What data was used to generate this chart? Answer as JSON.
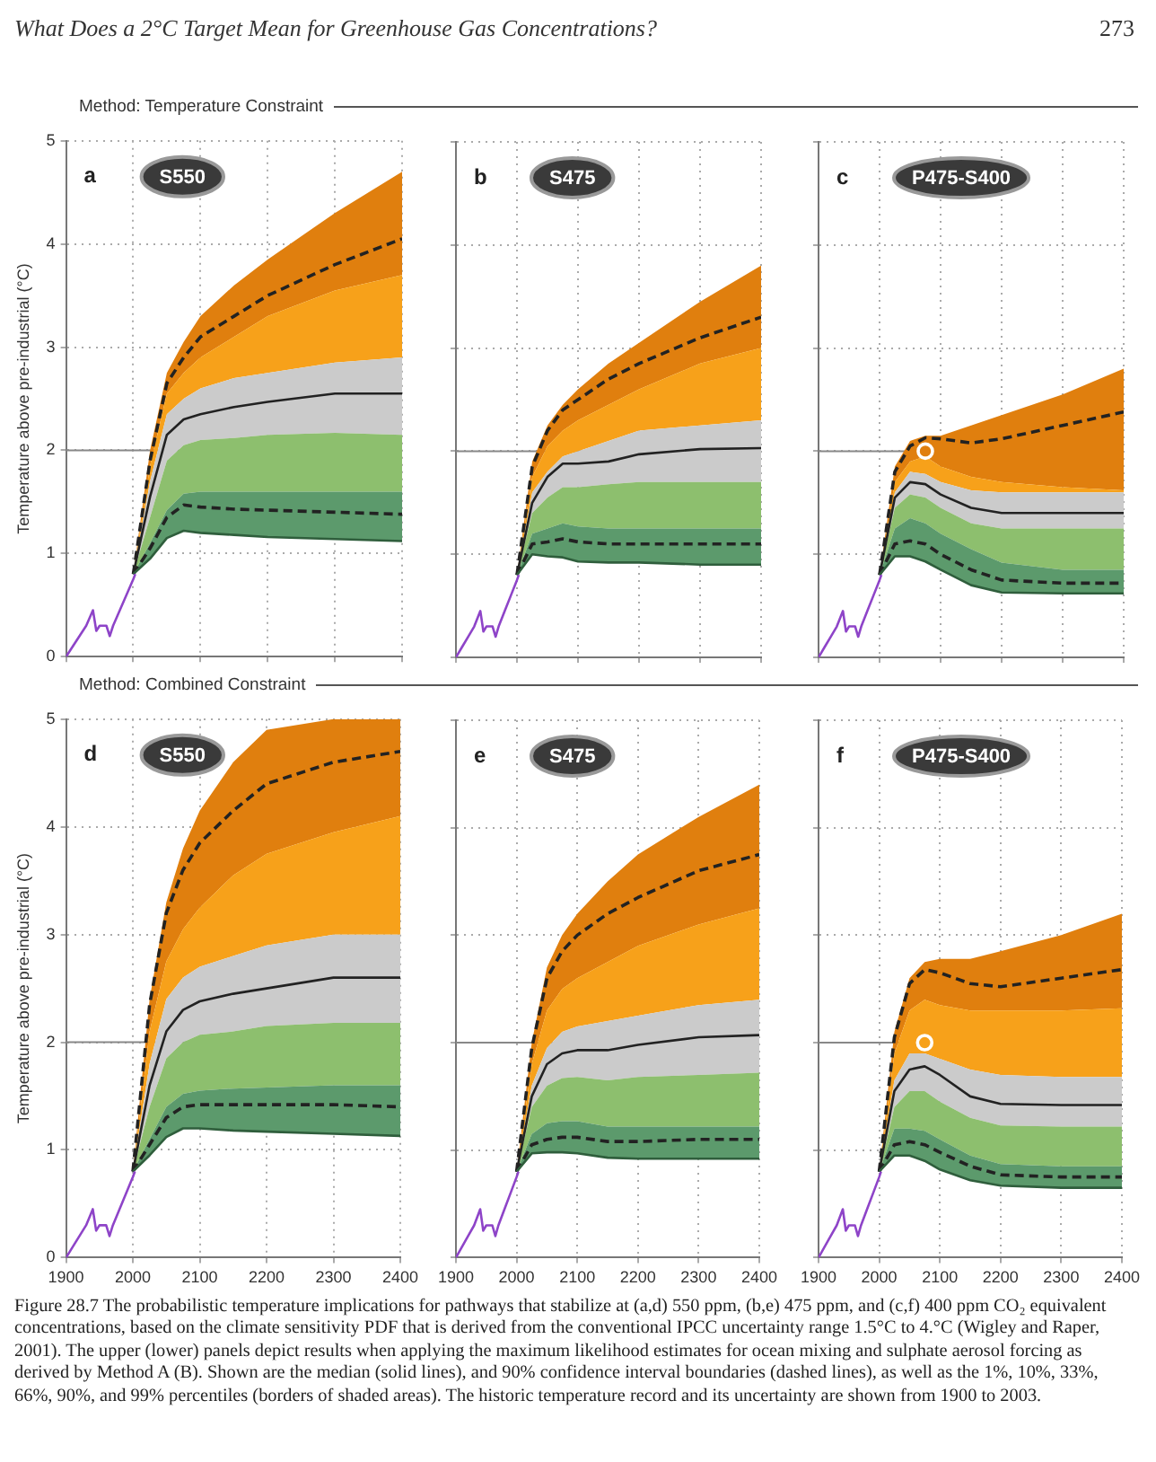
{
  "chart_data": [
    {
      "type": "line",
      "title": "a",
      "subtitle": "S550",
      "ylabel": "Temperature above pre-industrial (°C)",
      "annotations": [
        "What Does a 2°C Target Mean for Greenhouse Gas Concentrations?",
        "273",
        "Method: Temperature Constraint"
      ],
      "x": [
        2000,
        2025,
        2050,
        2075,
        2100,
        2150,
        2200,
        2300,
        2400
      ],
      "xlim": [
        1900,
        2400
      ],
      "xticks": [
        1900,
        2000,
        2100,
        2200,
        2300,
        2400
      ],
      "ylim": [
        0,
        5
      ],
      "yticks": [
        0,
        1,
        2,
        3,
        4,
        5
      ],
      "grid": true,
      "legend": false,
      "marker": "none",
      "tick_labels": "y",
      "ref_lines": [
        {
          "axis": "y",
          "value": 2,
          "color": "#888888"
        }
      ],
      "series": [
        {
          "type": "line",
          "color": "#8e44c8",
          "x": [
            1900,
            1910,
            1920,
            1930,
            1940,
            1945,
            1950,
            1960,
            1965,
            1970,
            1980,
            1990,
            2000,
            2003
          ],
          "values": [
            0,
            0.1,
            0.2,
            0.3,
            0.45,
            0.25,
            0.3,
            0.3,
            0.2,
            0.3,
            0.45,
            0.6,
            0.75,
            0.8
          ]
        },
        {
          "type": "line",
          "color": "#2f5e3c",
          "values": [
            0.8,
            0.95,
            1.15,
            1.22,
            1.2,
            1.18,
            1.16,
            1.14,
            1.12
          ]
        },
        {
          "type": "area",
          "color": "#5c9a6c",
          "values": [
            0.8,
            1.1,
            1.42,
            1.58,
            1.6,
            1.6,
            1.6,
            1.6,
            1.6
          ]
        },
        {
          "type": "area",
          "color": "#8dbf6e",
          "values": [
            0.8,
            1.35,
            1.9,
            2.05,
            2.1,
            2.12,
            2.15,
            2.17,
            2.15
          ]
        },
        {
          "type": "area",
          "color": "#cbcbcb",
          "values": [
            0.8,
            1.7,
            2.35,
            2.5,
            2.6,
            2.7,
            2.75,
            2.85,
            2.9
          ]
        },
        {
          "type": "area",
          "color": "#f7a11a",
          "values": [
            0.8,
            1.85,
            2.55,
            2.75,
            2.9,
            3.1,
            3.3,
            3.55,
            3.7
          ]
        },
        {
          "type": "area",
          "color": "#e07f0e",
          "values": [
            0.8,
            2.0,
            2.75,
            3.05,
            3.3,
            3.6,
            3.85,
            4.3,
            4.7
          ]
        },
        {
          "type": "line",
          "color": "#222222",
          "values": [
            0.8,
            1.55,
            2.15,
            2.3,
            2.35,
            2.42,
            2.47,
            2.55,
            2.55
          ]
        },
        {
          "type": "line",
          "color": "#222222",
          "line_style": "dashed",
          "values": [
            0.8,
            1.05,
            1.35,
            1.47,
            1.45,
            1.43,
            1.42,
            1.4,
            1.38
          ]
        },
        {
          "type": "line",
          "color": "#222222",
          "line_style": "dashed",
          "values": [
            0.8,
            1.9,
            2.65,
            2.9,
            3.1,
            3.3,
            3.5,
            3.8,
            4.05
          ]
        }
      ]
    },
    {
      "type": "line",
      "title": "b",
      "subtitle": "S475",
      "x": [
        2000,
        2025,
        2050,
        2075,
        2100,
        2150,
        2200,
        2300,
        2400
      ],
      "xlim": [
        1900,
        2400
      ],
      "xticks": [
        1900,
        2000,
        2100,
        2200,
        2300,
        2400
      ],
      "ylim": [
        0,
        5
      ],
      "yticks": [
        0,
        1,
        2,
        3,
        4,
        5
      ],
      "grid": true,
      "legend": false,
      "marker": "none",
      "tick_labels": false,
      "ref_lines": [
        {
          "axis": "y",
          "value": 2,
          "color": "#888888"
        }
      ],
      "series": [
        {
          "type": "line",
          "color": "#8e44c8",
          "x": [
            1900,
            1910,
            1920,
            1930,
            1940,
            1945,
            1950,
            1960,
            1965,
            1970,
            1980,
            1990,
            2000,
            2003
          ],
          "values": [
            0,
            0.1,
            0.2,
            0.3,
            0.45,
            0.25,
            0.3,
            0.3,
            0.2,
            0.3,
            0.45,
            0.6,
            0.75,
            0.8
          ]
        },
        {
          "type": "line",
          "color": "#2f5e3c",
          "values": [
            0.8,
            1.0,
            0.98,
            0.97,
            0.93,
            0.92,
            0.92,
            0.9,
            0.9
          ]
        },
        {
          "type": "area",
          "color": "#5c9a6c",
          "values": [
            0.8,
            1.2,
            1.25,
            1.3,
            1.27,
            1.25,
            1.25,
            1.25,
            1.25
          ]
        },
        {
          "type": "area",
          "color": "#8dbf6e",
          "values": [
            0.8,
            1.4,
            1.55,
            1.65,
            1.65,
            1.68,
            1.7,
            1.7,
            1.7
          ]
        },
        {
          "type": "area",
          "color": "#cbcbcb",
          "values": [
            0.8,
            1.6,
            1.8,
            1.95,
            2.0,
            2.1,
            2.2,
            2.25,
            2.3
          ]
        },
        {
          "type": "area",
          "color": "#f7a11a",
          "values": [
            0.8,
            1.75,
            2.05,
            2.2,
            2.3,
            2.45,
            2.6,
            2.85,
            3.0
          ]
        },
        {
          "type": "area",
          "color": "#e07f0e",
          "values": [
            0.8,
            1.9,
            2.25,
            2.45,
            2.6,
            2.85,
            3.05,
            3.45,
            3.8
          ]
        },
        {
          "type": "line",
          "color": "#222222",
          "values": [
            0.8,
            1.5,
            1.75,
            1.88,
            1.88,
            1.9,
            1.97,
            2.02,
            2.03
          ]
        },
        {
          "type": "line",
          "color": "#222222",
          "line_style": "dashed",
          "values": [
            0.8,
            1.1,
            1.12,
            1.15,
            1.12,
            1.1,
            1.1,
            1.1,
            1.1
          ]
        },
        {
          "type": "line",
          "color": "#222222",
          "line_style": "dashed",
          "values": [
            0.8,
            1.85,
            2.2,
            2.4,
            2.5,
            2.7,
            2.85,
            3.1,
            3.3
          ]
        }
      ]
    },
    {
      "type": "line",
      "title": "c",
      "subtitle": "P475-S400",
      "x": [
        2000,
        2025,
        2050,
        2075,
        2100,
        2150,
        2200,
        2300,
        2400
      ],
      "xlim": [
        1900,
        2400
      ],
      "xticks": [
        1900,
        2000,
        2100,
        2200,
        2300,
        2400
      ],
      "ylim": [
        0,
        5
      ],
      "yticks": [
        0,
        1,
        2,
        3,
        4,
        5
      ],
      "grid": true,
      "legend": false,
      "marker": "none",
      "tick_labels": false,
      "ref_lines": [
        {
          "axis": "y",
          "value": 2,
          "color": "#888888"
        }
      ],
      "series": [
        {
          "type": "line",
          "color": "#8e44c8",
          "x": [
            1900,
            1910,
            1920,
            1930,
            1940,
            1945,
            1950,
            1960,
            1965,
            1970,
            1980,
            1990,
            2000,
            2003
          ],
          "values": [
            0,
            0.1,
            0.2,
            0.3,
            0.45,
            0.25,
            0.3,
            0.3,
            0.2,
            0.3,
            0.45,
            0.6,
            0.75,
            0.8
          ]
        },
        {
          "type": "line",
          "color": "#2f5e3c",
          "values": [
            0.8,
            0.98,
            0.98,
            0.93,
            0.85,
            0.7,
            0.63,
            0.62,
            0.62
          ]
        },
        {
          "type": "area",
          "color": "#5c9a6c",
          "values": [
            0.8,
            1.25,
            1.35,
            1.3,
            1.2,
            1.05,
            0.92,
            0.85,
            0.85
          ]
        },
        {
          "type": "area",
          "color": "#8dbf6e",
          "values": [
            0.8,
            1.45,
            1.58,
            1.55,
            1.45,
            1.3,
            1.25,
            1.25,
            1.25
          ]
        },
        {
          "type": "area",
          "color": "#cbcbcb",
          "values": [
            0.8,
            1.6,
            1.8,
            1.78,
            1.7,
            1.62,
            1.6,
            1.6,
            1.6
          ]
        },
        {
          "type": "area",
          "color": "#f7a11a",
          "values": [
            0.8,
            1.7,
            1.9,
            1.95,
            1.85,
            1.75,
            1.7,
            1.65,
            1.62
          ]
        },
        {
          "type": "area",
          "color": "#e07f0e",
          "values": [
            0.8,
            1.85,
            2.1,
            2.15,
            2.15,
            2.25,
            2.35,
            2.55,
            2.8
          ]
        },
        {
          "type": "line",
          "color": "#222222",
          "values": [
            0.8,
            1.55,
            1.7,
            1.68,
            1.58,
            1.45,
            1.4,
            1.4,
            1.4
          ]
        },
        {
          "type": "line",
          "color": "#222222",
          "line_style": "dashed",
          "values": [
            0.8,
            1.1,
            1.13,
            1.1,
            1.0,
            0.85,
            0.75,
            0.72,
            0.72
          ]
        },
        {
          "type": "line",
          "color": "#222222",
          "line_style": "dashed",
          "values": [
            0.8,
            1.8,
            2.05,
            2.13,
            2.12,
            2.08,
            2.12,
            2.25,
            2.38
          ]
        },
        {
          "type": "scatter",
          "color": "#ffffff",
          "marker": "circle",
          "x": [
            2075
          ],
          "values": [
            2.0
          ]
        }
      ]
    },
    {
      "type": "line",
      "title": "d",
      "subtitle": "S550",
      "ylabel": "Temperature above pre-industrial (°C)",
      "annotations": [
        "Method: Combined Constraint"
      ],
      "x": [
        2000,
        2025,
        2050,
        2075,
        2100,
        2150,
        2200,
        2300,
        2400
      ],
      "xlim": [
        1900,
        2400
      ],
      "xticks": [
        1900,
        2000,
        2100,
        2200,
        2300,
        2400
      ],
      "ylim": [
        0,
        5
      ],
      "yticks": [
        0,
        1,
        2,
        3,
        4,
        5
      ],
      "grid": true,
      "legend": false,
      "marker": "none",
      "ref_lines": [
        {
          "axis": "y",
          "value": 2,
          "color": "#888888"
        }
      ],
      "series": [
        {
          "type": "line",
          "color": "#8e44c8",
          "x": [
            1900,
            1910,
            1920,
            1930,
            1940,
            1945,
            1950,
            1960,
            1965,
            1970,
            1980,
            1990,
            2000,
            2003
          ],
          "values": [
            0,
            0.1,
            0.2,
            0.3,
            0.45,
            0.25,
            0.3,
            0.3,
            0.2,
            0.3,
            0.45,
            0.6,
            0.75,
            0.8
          ]
        },
        {
          "type": "line",
          "color": "#2f5e3c",
          "values": [
            0.8,
            0.95,
            1.12,
            1.2,
            1.2,
            1.18,
            1.17,
            1.15,
            1.13
          ]
        },
        {
          "type": "area",
          "color": "#5c9a6c",
          "values": [
            0.8,
            1.1,
            1.4,
            1.52,
            1.55,
            1.57,
            1.58,
            1.6,
            1.6
          ]
        },
        {
          "type": "area",
          "color": "#8dbf6e",
          "values": [
            0.8,
            1.4,
            1.85,
            2.0,
            2.07,
            2.1,
            2.15,
            2.18,
            2.18
          ]
        },
        {
          "type": "area",
          "color": "#cbcbcb",
          "values": [
            0.8,
            1.8,
            2.4,
            2.6,
            2.7,
            2.8,
            2.9,
            3.0,
            3.0
          ]
        },
        {
          "type": "area",
          "color": "#f7a11a",
          "values": [
            0.8,
            2.1,
            2.75,
            3.05,
            3.25,
            3.55,
            3.75,
            3.95,
            4.1
          ]
        },
        {
          "type": "area",
          "color": "#e07f0e",
          "values": [
            0.8,
            2.4,
            3.3,
            3.8,
            4.15,
            4.6,
            4.9,
            5,
            5
          ]
        },
        {
          "type": "line",
          "color": "#222222",
          "values": [
            0.8,
            1.6,
            2.1,
            2.3,
            2.38,
            2.45,
            2.5,
            2.6,
            2.6
          ]
        },
        {
          "type": "line",
          "color": "#222222",
          "line_style": "dashed",
          "values": [
            0.8,
            1.05,
            1.3,
            1.4,
            1.42,
            1.42,
            1.42,
            1.42,
            1.4
          ]
        },
        {
          "type": "line",
          "color": "#222222",
          "line_style": "dashed",
          "values": [
            0.8,
            2.35,
            3.2,
            3.6,
            3.85,
            4.15,
            4.4,
            4.6,
            4.7
          ]
        }
      ]
    },
    {
      "type": "line",
      "title": "e",
      "subtitle": "S475",
      "x": [
        2000,
        2025,
        2050,
        2075,
        2100,
        2150,
        2200,
        2300,
        2400
      ],
      "xlim": [
        1900,
        2400
      ],
      "xticks": [
        1900,
        2000,
        2100,
        2200,
        2300,
        2400
      ],
      "ylim": [
        0,
        5
      ],
      "yticks": [
        0,
        1,
        2,
        3,
        4,
        5
      ],
      "grid": true,
      "legend": false,
      "marker": "none",
      "tick_labels": "x",
      "ref_lines": [
        {
          "axis": "y",
          "value": 2,
          "color": "#888888"
        }
      ],
      "series": [
        {
          "type": "line",
          "color": "#8e44c8",
          "x": [
            1900,
            1910,
            1920,
            1930,
            1940,
            1945,
            1950,
            1960,
            1965,
            1970,
            1980,
            1990,
            2000,
            2003
          ],
          "values": [
            0,
            0.1,
            0.2,
            0.3,
            0.45,
            0.25,
            0.3,
            0.3,
            0.2,
            0.3,
            0.45,
            0.6,
            0.75,
            0.8
          ]
        },
        {
          "type": "line",
          "color": "#2f5e3c",
          "values": [
            0.8,
            0.97,
            0.98,
            0.98,
            0.97,
            0.93,
            0.92,
            0.92,
            0.92
          ]
        },
        {
          "type": "area",
          "color": "#5c9a6c",
          "values": [
            0.8,
            1.15,
            1.25,
            1.27,
            1.27,
            1.22,
            1.22,
            1.22,
            1.22
          ]
        },
        {
          "type": "area",
          "color": "#8dbf6e",
          "values": [
            0.8,
            1.4,
            1.6,
            1.67,
            1.68,
            1.65,
            1.68,
            1.7,
            1.72
          ]
        },
        {
          "type": "area",
          "color": "#cbcbcb",
          "values": [
            0.8,
            1.6,
            1.95,
            2.1,
            2.15,
            2.2,
            2.25,
            2.35,
            2.4
          ]
        },
        {
          "type": "area",
          "color": "#f7a11a",
          "values": [
            0.8,
            1.8,
            2.3,
            2.5,
            2.6,
            2.75,
            2.9,
            3.1,
            3.25
          ]
        },
        {
          "type": "area",
          "color": "#e07f0e",
          "values": [
            0.8,
            2.0,
            2.7,
            3.0,
            3.2,
            3.5,
            3.75,
            4.1,
            4.4
          ]
        },
        {
          "type": "line",
          "color": "#222222",
          "values": [
            0.8,
            1.5,
            1.8,
            1.9,
            1.93,
            1.93,
            1.98,
            2.05,
            2.07
          ]
        },
        {
          "type": "line",
          "color": "#222222",
          "line_style": "dashed",
          "values": [
            0.8,
            1.05,
            1.1,
            1.12,
            1.12,
            1.08,
            1.08,
            1.1,
            1.1
          ]
        },
        {
          "type": "line",
          "color": "#222222",
          "line_style": "dashed",
          "values": [
            0.8,
            1.95,
            2.6,
            2.85,
            3.0,
            3.2,
            3.35,
            3.6,
            3.75
          ]
        }
      ]
    },
    {
      "type": "line",
      "title": "f",
      "subtitle": "P475-S400",
      "annotations": [
        "Figure 28.7 The probabilistic temperature implications for pathways that stabilize at (a,d) 550 ppm, (b,e) 475 ppm, and (c,f) 400 ppm CO₂ equivalent concentrations, based on the climate sensitivity PDF that is derived from the conventional IPCC uncertainty range 1.5°C to 4.°C (Wigley and Raper, 2001). The upper (lower) panels depict results when applying the maximum likelihood estimates for ocean mixing and sulphate aerosol forcing as derived by Method A (B). Shown are the median (solid lines), and 90% confidence interval boundaries (dashed lines), as well as the 1%, 10%, 33%, 66%, 90%, and 99% percentiles (borders of shaded areas). The historic temperature record and its uncertainty are shown from 1900 to 2003."
      ],
      "x": [
        2000,
        2025,
        2050,
        2075,
        2100,
        2150,
        2200,
        2300,
        2400
      ],
      "xlim": [
        1900,
        2400
      ],
      "xticks": [
        1900,
        2000,
        2100,
        2200,
        2300,
        2400
      ],
      "ylim": [
        0,
        5
      ],
      "yticks": [
        0,
        1,
        2,
        3,
        4,
        5
      ],
      "grid": true,
      "legend": false,
      "marker": "none",
      "tick_labels": "x",
      "ref_lines": [
        {
          "axis": "y",
          "value": 2,
          "color": "#888888"
        }
      ],
      "series": [
        {
          "type": "line",
          "color": "#8e44c8",
          "x": [
            1900,
            1910,
            1920,
            1930,
            1940,
            1945,
            1950,
            1960,
            1965,
            1970,
            1980,
            1990,
            2000,
            2003
          ],
          "values": [
            0,
            0.1,
            0.2,
            0.3,
            0.45,
            0.25,
            0.3,
            0.3,
            0.2,
            0.3,
            0.45,
            0.6,
            0.75,
            0.8
          ]
        },
        {
          "type": "line",
          "color": "#2f5e3c",
          "values": [
            0.8,
            0.95,
            0.95,
            0.9,
            0.82,
            0.72,
            0.67,
            0.65,
            0.65
          ]
        },
        {
          "type": "area",
          "color": "#5c9a6c",
          "values": [
            0.8,
            1.2,
            1.2,
            1.18,
            1.1,
            0.95,
            0.87,
            0.85,
            0.85
          ]
        },
        {
          "type": "area",
          "color": "#8dbf6e",
          "values": [
            0.8,
            1.4,
            1.55,
            1.55,
            1.45,
            1.3,
            1.23,
            1.22,
            1.22
          ]
        },
        {
          "type": "area",
          "color": "#cbcbcb",
          "values": [
            0.8,
            1.65,
            1.9,
            1.9,
            1.85,
            1.75,
            1.7,
            1.68,
            1.68
          ]
        },
        {
          "type": "area",
          "color": "#f7a11a",
          "values": [
            0.8,
            1.9,
            2.3,
            2.4,
            2.35,
            2.3,
            2.3,
            2.3,
            2.32
          ]
        },
        {
          "type": "area",
          "color": "#e07f0e",
          "values": [
            0.8,
            2.1,
            2.6,
            2.75,
            2.78,
            2.78,
            2.85,
            3.0,
            3.2
          ]
        },
        {
          "type": "line",
          "color": "#222222",
          "values": [
            0.8,
            1.55,
            1.75,
            1.78,
            1.7,
            1.5,
            1.43,
            1.42,
            1.42
          ]
        },
        {
          "type": "line",
          "color": "#222222",
          "line_style": "dashed",
          "values": [
            0.8,
            1.05,
            1.08,
            1.05,
            0.98,
            0.85,
            0.77,
            0.75,
            0.75
          ]
        },
        {
          "type": "line",
          "color": "#222222",
          "line_style": "dashed",
          "values": [
            0.8,
            2.05,
            2.55,
            2.68,
            2.65,
            2.55,
            2.52,
            2.6,
            2.68
          ]
        },
        {
          "type": "scatter",
          "color": "#ffffff",
          "marker": "circle",
          "x": [
            2075
          ],
          "values": [
            2.0
          ]
        }
      ]
    }
  ]
}
